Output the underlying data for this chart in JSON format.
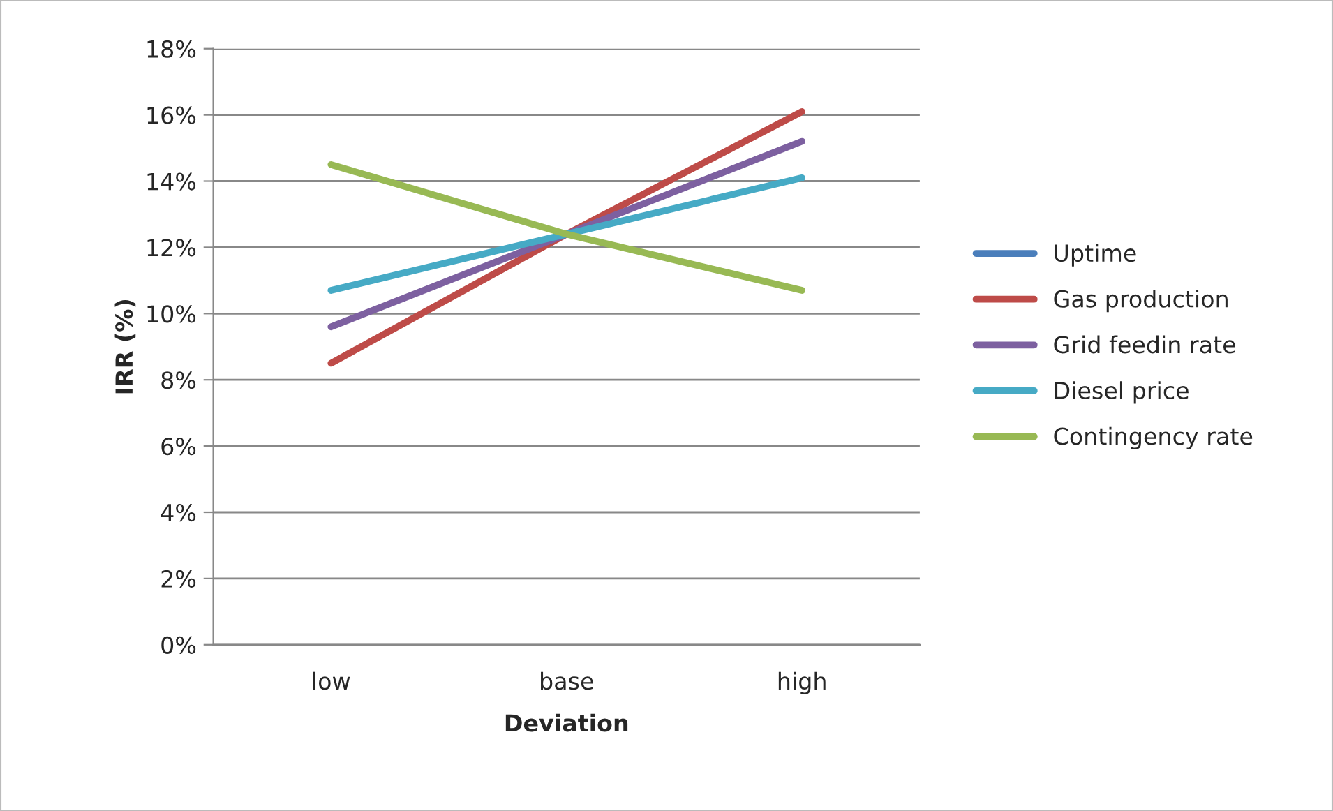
{
  "chart_data": {
    "type": "line",
    "xlabel": "Deviation",
    "ylabel": "IRR (%)",
    "categories": [
      "low",
      "base",
      "high"
    ],
    "series": [
      {
        "name": "Uptime",
        "color": "#4a7ebb",
        "values": [
          null,
          null,
          null
        ]
      },
      {
        "name": "Gas production",
        "color": "#be4b48",
        "values": [
          8.5,
          12.4,
          16.1
        ]
      },
      {
        "name": "Grid feedin rate",
        "color": "#7d60a0",
        "values": [
          9.6,
          12.4,
          15.2
        ]
      },
      {
        "name": "Diesel price",
        "color": "#46aac5",
        "values": [
          10.7,
          12.4,
          14.1
        ]
      },
      {
        "name": "Contingency rate",
        "color": "#98b954",
        "values": [
          14.5,
          12.4,
          10.7
        ]
      }
    ],
    "ylim": [
      0,
      18
    ],
    "yticks": [
      {
        "value": 0,
        "label": "0%"
      },
      {
        "value": 2,
        "label": "2%"
      },
      {
        "value": 4,
        "label": "4%"
      },
      {
        "value": 6,
        "label": "6%"
      },
      {
        "value": 8,
        "label": "8%"
      },
      {
        "value": 10,
        "label": "10%"
      },
      {
        "value": 12,
        "label": "12%"
      },
      {
        "value": 14,
        "label": "14%"
      },
      {
        "value": 16,
        "label": "16%"
      },
      {
        "value": 18,
        "label": "18%"
      }
    ],
    "grid": "y",
    "legend": "right",
    "marker": "none",
    "line_style": "solid"
  }
}
